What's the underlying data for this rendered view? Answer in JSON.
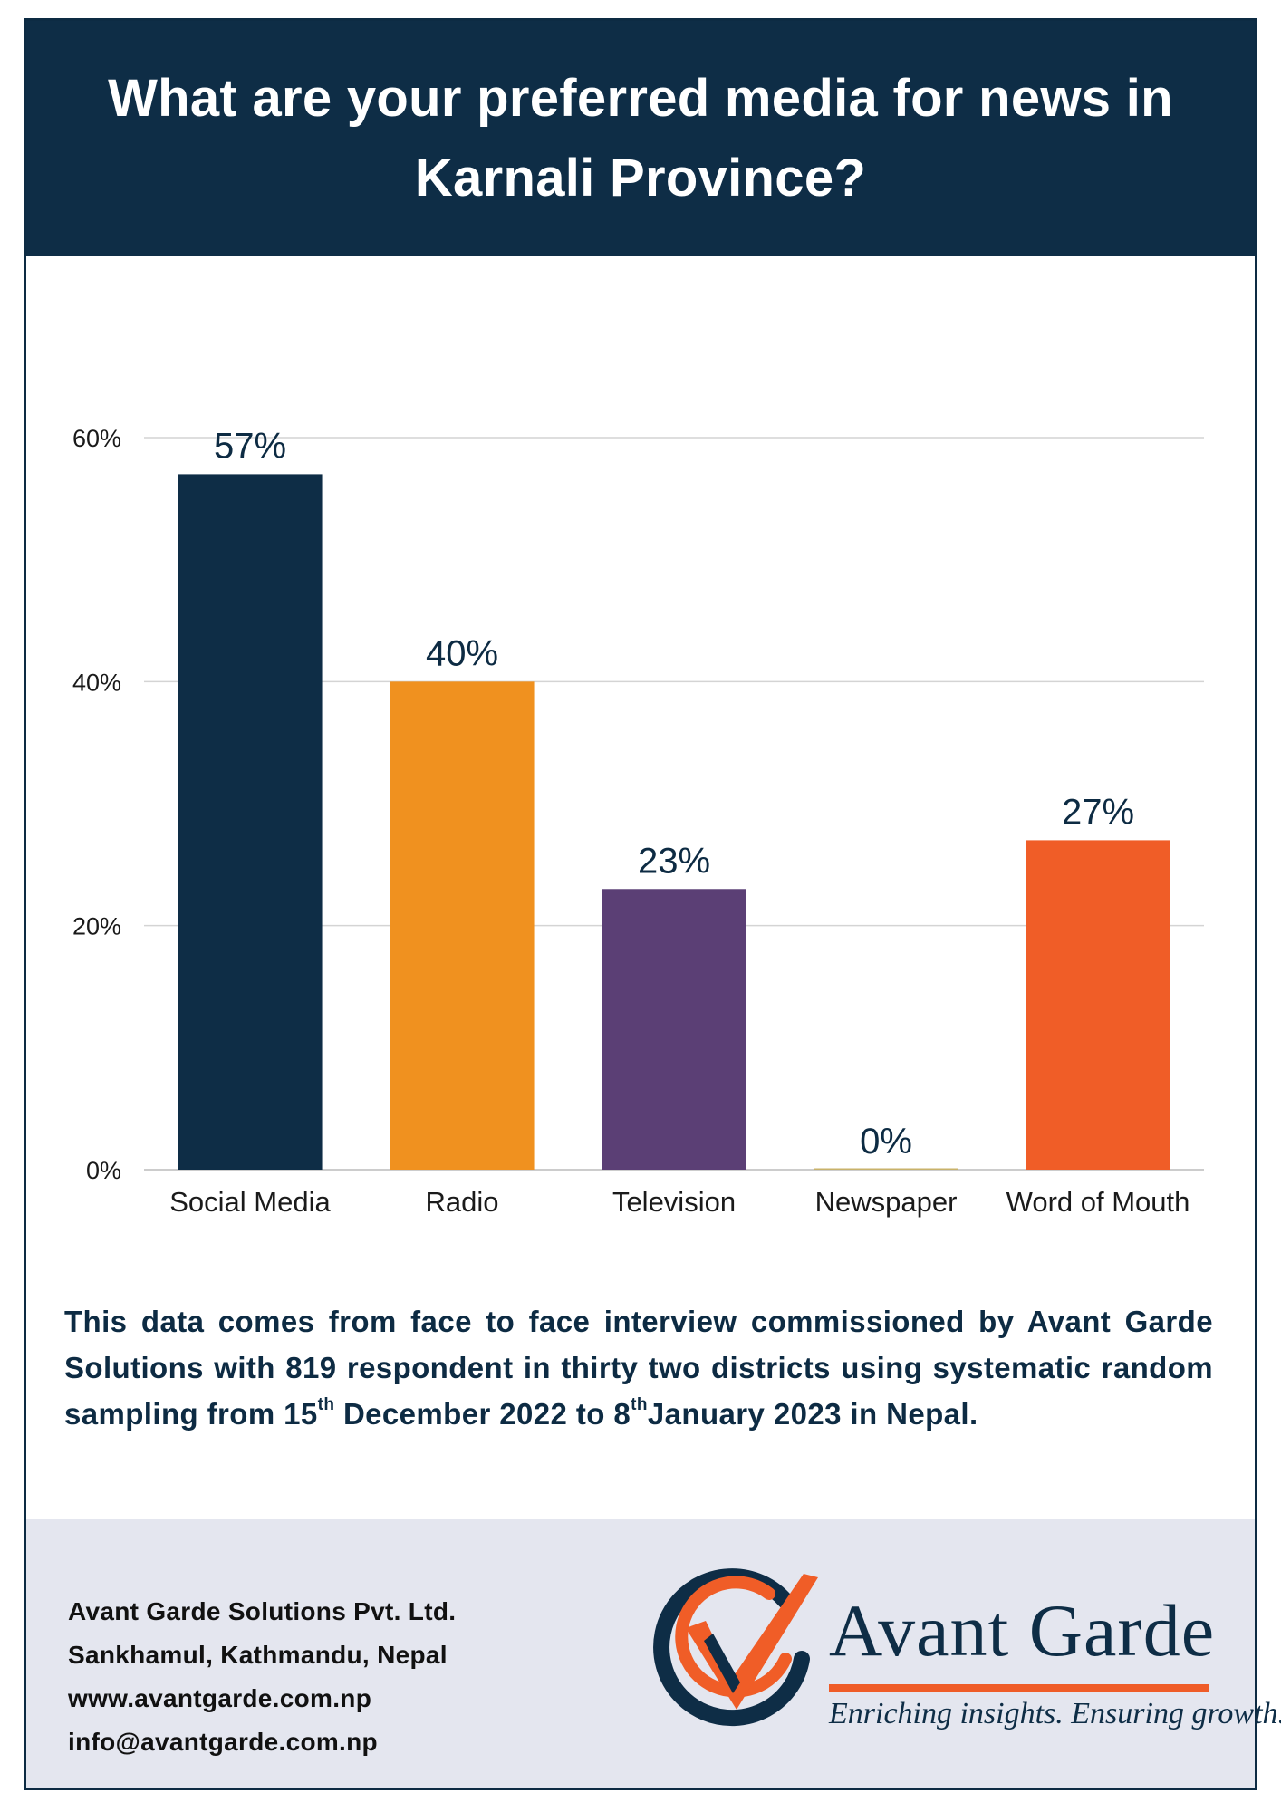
{
  "title": "What are your preferred media for news in Karnali Province?",
  "chart_data": {
    "type": "bar",
    "title": "What are your preferred media for news in Karnali Province?",
    "categories": [
      "Social Media",
      "Radio",
      "Television",
      "Newspaper",
      "Word of Mouth"
    ],
    "values": [
      57,
      40,
      23,
      0,
      27
    ],
    "data_labels": [
      "57%",
      "40%",
      "23%",
      "0%",
      "27%"
    ],
    "bar_colors": [
      "#0e2d46",
      "#f0911f",
      "#5b3f75",
      "#c8b26a",
      "#f05d27"
    ],
    "ylim": [
      0,
      60
    ],
    "yticks": [
      0,
      20,
      40,
      60
    ],
    "ytick_labels": [
      "0%",
      "20%",
      "40%",
      "60%"
    ],
    "xlabel": "",
    "ylabel": "",
    "grid": true,
    "legend": "none"
  },
  "note": {
    "before_sup1": "This data comes from face to face interview commissioned by Avant Garde Solutions with 819 respondent in thirty two districts using systematic random sampling from 15",
    "sup1": "th",
    "between": " December 2022 to 8",
    "sup2": "th",
    "after": "January 2023 in Nepal."
  },
  "footer": {
    "company": "Avant Garde Solutions Pvt. Ltd.",
    "address": "Sankhamul, Kathmandu, Nepal",
    "website": "www.avantgarde.com.np",
    "email": "info@avantgarde.com.np"
  },
  "logo": {
    "brand": "Avant Garde",
    "tagline": "Enriching insights. Ensuring growth."
  },
  "colors": {
    "navy": "#0e2d46",
    "orange": "#f05d27",
    "footer_bg": "#e4e6ef"
  }
}
